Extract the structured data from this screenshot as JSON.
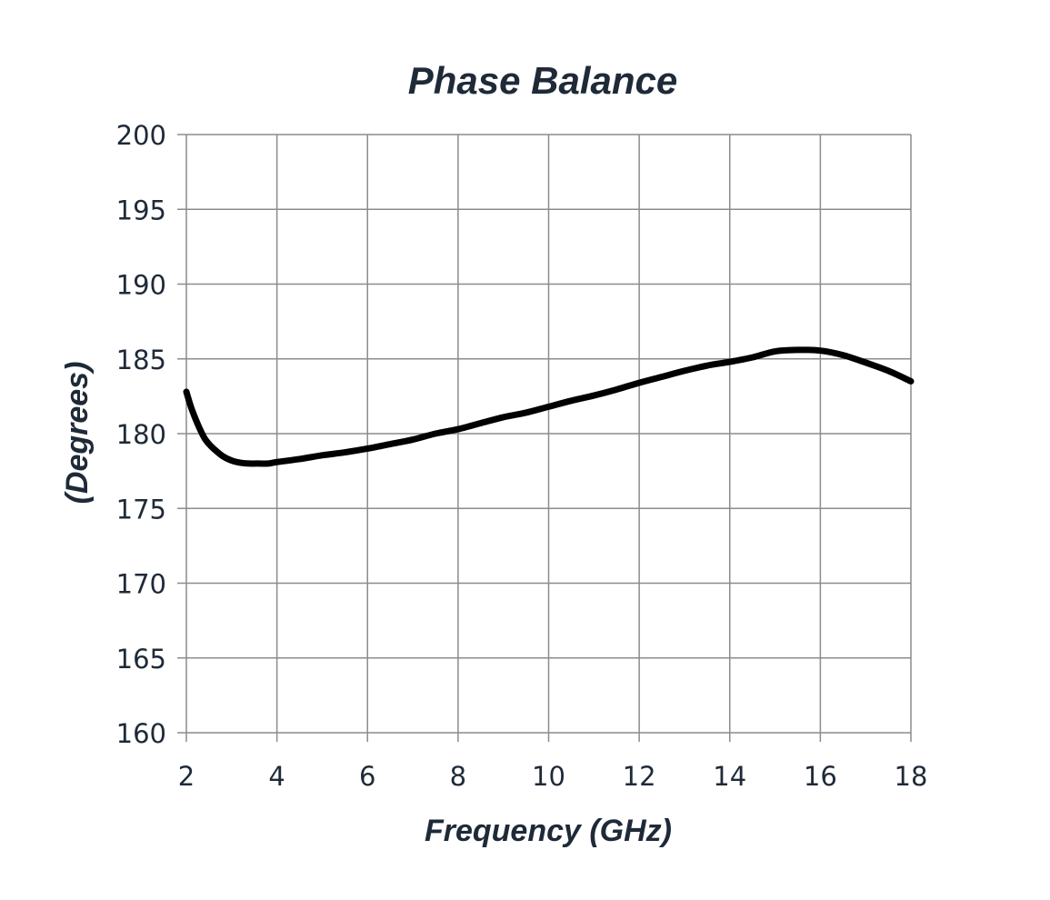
{
  "chart_data": {
    "type": "line",
    "title": "Phase Balance",
    "xlabel": "Frequency (GHz)",
    "ylabel": "(Degrees)",
    "xlim": [
      2,
      18
    ],
    "ylim": [
      160,
      200
    ],
    "xticks": [
      2,
      4,
      6,
      8,
      10,
      12,
      14,
      16,
      18
    ],
    "yticks": [
      160,
      165,
      170,
      175,
      180,
      185,
      190,
      195,
      200
    ],
    "grid": true,
    "legend": "none",
    "colors": {
      "text": "#1f2a38",
      "grid": "#8c8c8c",
      "line": "#000000",
      "background": "#ffffff"
    },
    "series": [
      {
        "x": [
          2.0,
          2.1,
          2.2,
          2.3,
          2.4,
          2.5,
          2.6,
          2.8,
          3.0,
          3.2,
          3.4,
          3.6,
          3.8,
          4.0,
          4.5,
          5.0,
          5.5,
          6.0,
          6.5,
          7.0,
          7.5,
          8.0,
          8.5,
          9.0,
          9.5,
          10.0,
          10.5,
          11.0,
          11.5,
          12.0,
          12.5,
          13.0,
          13.5,
          14.0,
          14.5,
          15.0,
          15.5,
          16.0,
          16.5,
          17.0,
          17.5,
          18.0
        ],
        "values": [
          182.8,
          181.8,
          181.0,
          180.3,
          179.7,
          179.3,
          179.0,
          178.5,
          178.2,
          178.05,
          178.0,
          178.0,
          178.0,
          178.1,
          178.3,
          178.55,
          178.75,
          179.0,
          179.3,
          179.6,
          180.0,
          180.3,
          180.7,
          181.1,
          181.4,
          181.8,
          182.2,
          182.55,
          182.95,
          183.4,
          183.8,
          184.2,
          184.55,
          184.8,
          185.1,
          185.5,
          185.6,
          185.55,
          185.25,
          184.75,
          184.2,
          183.5
        ]
      }
    ]
  }
}
